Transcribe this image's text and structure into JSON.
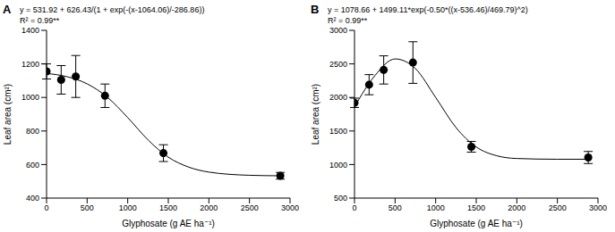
{
  "chart_data": [
    {
      "type": "scatter",
      "panel_label": "A",
      "annotations": [
        "y = 531.92 + 626.43/(1 + exp(-(x-1064.06)/-286.86))",
        "R² = 0.99**"
      ],
      "x_label": "Glyphosate (g AE ha⁻¹)",
      "y_label": "Leaf area (cm²)",
      "xlim": [
        0,
        3000
      ],
      "xticks": [
        0,
        500,
        1000,
        1500,
        2000,
        2500,
        3000
      ],
      "ylim": [
        400,
        1400
      ],
      "yticks": [
        400,
        600,
        800,
        1000,
        1200,
        1400
      ],
      "grid": false,
      "series": [
        {
          "type": "scatter",
          "marker": "circle",
          "color": "#000000",
          "x": [
            0,
            180,
            360,
            720,
            1440,
            2880
          ],
          "values": [
            1155,
            1105,
            1125,
            1010,
            668,
            533
          ],
          "error": [
            45,
            85,
            125,
            70,
            50,
            20
          ]
        },
        {
          "type": "line",
          "line_style": "solid",
          "color": "#000000",
          "x": [
            0,
            250,
            500,
            750,
            1000,
            1250,
            1500,
            1750,
            2000,
            2500,
            2880
          ],
          "values": [
            1143,
            1124,
            1081,
            1001,
            880,
            747,
            644,
            585,
            555,
            536,
            533
          ]
        }
      ]
    },
    {
      "type": "scatter",
      "panel_label": "B",
      "annotations": [
        "y = 1078.66 + 1499.11*exp(-0.50*((x-536.46)/469.79)^2)",
        "R² = 0.99**"
      ],
      "x_label": "Glyphosate (g AE ha⁻¹)",
      "y_label": "Leaf area (cm²)",
      "xlim": [
        0,
        3000
      ],
      "xticks": [
        0,
        500,
        1000,
        1500,
        2000,
        2500,
        3000
      ],
      "ylim": [
        500,
        3000
      ],
      "yticks": [
        500,
        1000,
        1500,
        2000,
        2500,
        3000
      ],
      "grid": false,
      "series": [
        {
          "type": "scatter",
          "marker": "circle",
          "color": "#000000",
          "x": [
            0,
            180,
            360,
            720,
            1440,
            2880
          ],
          "values": [
            1920,
            2190,
            2410,
            2520,
            1265,
            1105
          ],
          "error": [
            70,
            150,
            210,
            310,
            80,
            90
          ]
        },
        {
          "type": "line",
          "line_style": "solid",
          "color": "#000000",
          "x": [
            0,
            250,
            500,
            750,
            1000,
            1250,
            1500,
            1750,
            2000,
            2500,
            2880
          ],
          "values": [
            1860,
            2323,
            2574,
            2431,
            2000,
            1552,
            1262,
            1132,
            1090,
            1079,
            1079
          ]
        }
      ]
    }
  ]
}
